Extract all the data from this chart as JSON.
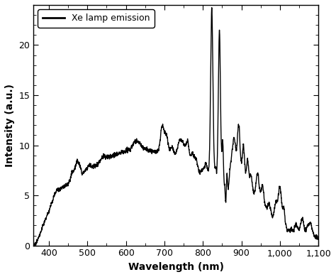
{
  "title": "",
  "xlabel": "Wavelength (nm)",
  "ylabel": "Intensity (a.u.)",
  "legend_label": "Xe lamp emission",
  "xlim": [
    360,
    1100
  ],
  "ylim": [
    0,
    24
  ],
  "xticks": [
    400,
    500,
    600,
    700,
    800,
    900,
    1000,
    1100
  ],
  "yticks": [
    0,
    5,
    10,
    15,
    20
  ],
  "line_color": "#000000",
  "line_width": 1.0,
  "background_color": "#ffffff",
  "figsize": [
    4.74,
    3.9
  ],
  "dpi": 100
}
